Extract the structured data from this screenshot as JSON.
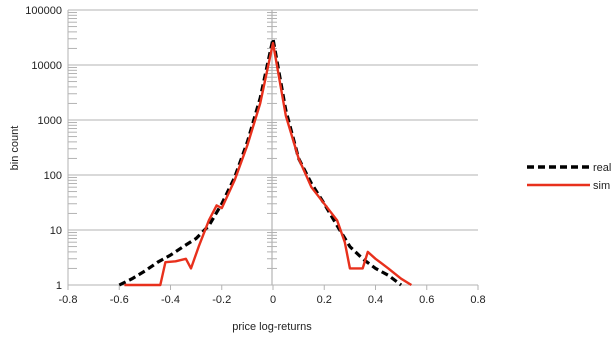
{
  "chart_data": {
    "type": "line",
    "title": "",
    "xlabel": "price log-returns",
    "ylabel": "bin count",
    "xscale": "linear",
    "yscale": "log",
    "xlim": [
      -0.8,
      0.8
    ],
    "ylim": [
      1,
      100000
    ],
    "x_ticks": [
      "-0.8",
      "-0.6",
      "-0.4",
      "-0.2",
      "0",
      "0.2",
      "0.4",
      "0.6",
      "0.8"
    ],
    "y_ticks": [
      "1",
      "10",
      "100",
      "1000",
      "10000",
      "100000"
    ],
    "grid": "horizontal major gridlines",
    "legend_position": "right",
    "series": [
      {
        "name": "real",
        "color": "#000000",
        "style": "dashed",
        "points": [
          [
            -0.6,
            1
          ],
          [
            -0.55,
            1.3
          ],
          [
            -0.5,
            1.8
          ],
          [
            -0.45,
            2.6
          ],
          [
            -0.4,
            3.5
          ],
          [
            -0.35,
            5
          ],
          [
            -0.3,
            7
          ],
          [
            -0.25,
            12
          ],
          [
            -0.2,
            30
          ],
          [
            -0.15,
            90
          ],
          [
            -0.1,
            400
          ],
          [
            -0.05,
            2500
          ],
          [
            0,
            30000
          ],
          [
            0.05,
            1500
          ],
          [
            0.1,
            200
          ],
          [
            0.15,
            70
          ],
          [
            0.2,
            30
          ],
          [
            0.25,
            12
          ],
          [
            0.3,
            5
          ],
          [
            0.35,
            3
          ],
          [
            0.4,
            2
          ],
          [
            0.45,
            1.5
          ],
          [
            0.5,
            1
          ]
        ]
      },
      {
        "name": "sim",
        "color": "#e8301c",
        "style": "solid",
        "points": [
          [
            -0.58,
            1
          ],
          [
            -0.52,
            1
          ],
          [
            -0.44,
            1
          ],
          [
            -0.42,
            2.6
          ],
          [
            -0.38,
            2.7
          ],
          [
            -0.34,
            3
          ],
          [
            -0.32,
            2
          ],
          [
            -0.29,
            5
          ],
          [
            -0.25,
            15
          ],
          [
            -0.22,
            28
          ],
          [
            -0.2,
            25
          ],
          [
            -0.15,
            80
          ],
          [
            -0.1,
            350
          ],
          [
            -0.05,
            2000
          ],
          [
            0,
            25000
          ],
          [
            0.05,
            1200
          ],
          [
            0.1,
            200
          ],
          [
            0.15,
            60
          ],
          [
            0.2,
            30
          ],
          [
            0.25,
            15
          ],
          [
            0.28,
            6
          ],
          [
            0.3,
            2
          ],
          [
            0.35,
            2
          ],
          [
            0.37,
            4
          ],
          [
            0.4,
            3
          ],
          [
            0.45,
            2
          ],
          [
            0.5,
            1.3
          ],
          [
            0.54,
            1
          ]
        ]
      }
    ]
  }
}
